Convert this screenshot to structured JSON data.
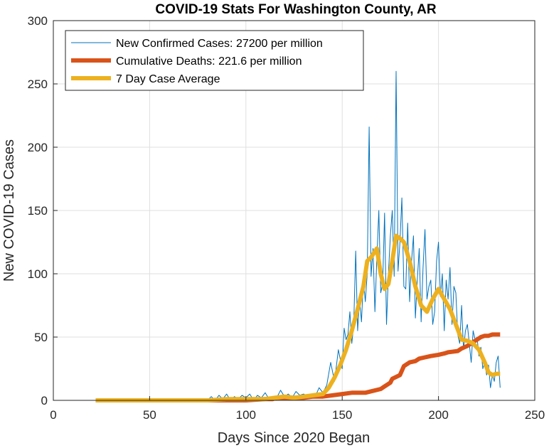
{
  "chart_data": {
    "type": "line",
    "title": "COVID-19 Stats For Washington County, AR",
    "xlabel": "Days Since 2020 Began",
    "ylabel": "New COVID-19 Cases",
    "xlim": [
      0,
      250
    ],
    "ylim": [
      0,
      300
    ],
    "xticks": [
      "0",
      "50",
      "100",
      "150",
      "200",
      "250"
    ],
    "yticks": [
      "0",
      "50",
      "100",
      "150",
      "200",
      "250",
      "300"
    ],
    "grid": true,
    "legend_position": "top-left",
    "series": [
      {
        "name": "New Confirmed Cases: 27200 per million",
        "color": "#0072BD",
        "style": "thin",
        "x": [
          22,
          40,
          60,
          80,
          82,
          84,
          86,
          88,
          90,
          92,
          94,
          96,
          98,
          100,
          102,
          104,
          106,
          108,
          110,
          112,
          114,
          116,
          118,
          120,
          122,
          124,
          126,
          128,
          130,
          132,
          134,
          136,
          138,
          140,
          142,
          144,
          146,
          148,
          150,
          151,
          152,
          153,
          154,
          155,
          156,
          157,
          158,
          159,
          160,
          161,
          162,
          163,
          164,
          165,
          166,
          167,
          168,
          169,
          170,
          171,
          172,
          173,
          174,
          175,
          176,
          177,
          178,
          179,
          180,
          181,
          182,
          183,
          184,
          185,
          186,
          187,
          188,
          189,
          190,
          191,
          192,
          193,
          194,
          195,
          196,
          197,
          198,
          199,
          200,
          201,
          202,
          203,
          204,
          205,
          206,
          207,
          208,
          209,
          210,
          211,
          212,
          213,
          214,
          215,
          216,
          217,
          218,
          219,
          220,
          221,
          222,
          223,
          224,
          225,
          226,
          227,
          228,
          229,
          230,
          231,
          232
        ],
        "values": [
          0,
          0,
          0,
          0,
          3,
          0,
          4,
          1,
          5,
          0,
          3,
          1,
          4,
          2,
          5,
          0,
          4,
          2,
          6,
          1,
          3,
          2,
          8,
          3,
          5,
          2,
          7,
          4,
          5,
          3,
          4,
          3,
          10,
          6,
          12,
          30,
          15,
          40,
          25,
          57,
          48,
          52,
          70,
          45,
          60,
          118,
          55,
          80,
          62,
          95,
          78,
          100,
          216,
          98,
          120,
          70,
          112,
          150,
          85,
          92,
          148,
          60,
          100,
          130,
          150,
          98,
          260,
          102,
          125,
          160,
          90,
          88,
          140,
          78,
          110,
          130,
          65,
          95,
          120,
          62,
          105,
          135,
          80,
          90,
          95,
          60,
          70,
          110,
          125,
          82,
          100,
          55,
          95,
          80,
          105,
          60,
          90,
          85,
          52,
          45,
          75,
          40,
          55,
          60,
          45,
          30,
          55,
          48,
          50,
          35,
          42,
          25,
          30,
          20,
          28,
          10,
          20,
          15,
          30,
          35,
          10
        ]
      },
      {
        "name": "Cumulative Deaths: 221.6 per million",
        "color": "#D95319",
        "style": "thick",
        "x": [
          22,
          40,
          60,
          80,
          100,
          110,
          114,
          116,
          120,
          130,
          135,
          140,
          150,
          155,
          160,
          162,
          170,
          172,
          175,
          176,
          180,
          182,
          185,
          188,
          190,
          193,
          196,
          200,
          203,
          205,
          210,
          212,
          215,
          218,
          220,
          222,
          224,
          226,
          228,
          230,
          232
        ],
        "values": [
          0,
          0,
          0,
          0,
          0,
          1,
          1,
          2,
          2,
          2,
          3,
          3,
          5,
          6,
          6,
          6,
          9,
          11,
          14,
          17,
          20,
          27,
          30,
          31,
          33,
          34,
          35,
          36,
          37,
          38,
          39,
          41,
          43,
          46,
          48,
          50,
          51,
          51,
          52,
          52,
          52
        ]
      },
      {
        "name": "7 Day Case Average",
        "color": "#EDB120",
        "style": "thick",
        "x": [
          22,
          40,
          60,
          80,
          90,
          100,
          110,
          115,
          120,
          125,
          130,
          135,
          140,
          143,
          146,
          149,
          152,
          155,
          158,
          161,
          163,
          165,
          168,
          170,
          172,
          174,
          176,
          178,
          180,
          182,
          185,
          188,
          191,
          194,
          197,
          200,
          203,
          206,
          209,
          212,
          215,
          218,
          221,
          224,
          226,
          228,
          230,
          232
        ],
        "values": [
          0,
          0,
          0,
          0,
          1,
          1,
          1,
          2,
          3,
          2,
          3,
          4,
          5,
          10,
          18,
          28,
          40,
          55,
          72,
          90,
          110,
          113,
          120,
          100,
          88,
          92,
          110,
          130,
          128,
          125,
          110,
          90,
          75,
          70,
          80,
          88,
          80,
          72,
          60,
          48,
          47,
          45,
          40,
          30,
          22,
          20,
          21,
          21
        ]
      }
    ]
  }
}
